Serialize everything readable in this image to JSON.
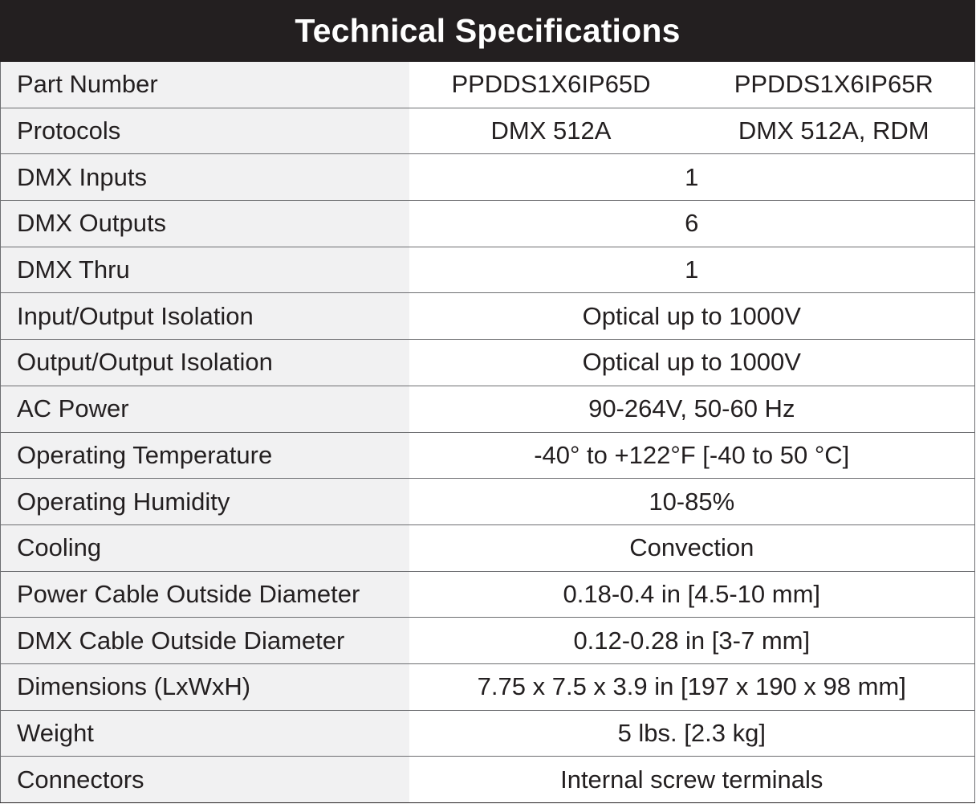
{
  "title": "Technical Specifications",
  "rows": [
    {
      "label": "Part Number",
      "values": [
        "PPDDS1X6IP65D",
        "PPDDS1X6IP65R"
      ]
    },
    {
      "label": "Protocols",
      "values": [
        "DMX 512A",
        "DMX 512A, RDM"
      ]
    },
    {
      "label": "DMX Inputs",
      "value": "1"
    },
    {
      "label": "DMX Outputs",
      "value": "6"
    },
    {
      "label": "DMX Thru",
      "value": "1"
    },
    {
      "label": "Input/Output Isolation",
      "value": "Optical up to 1000V"
    },
    {
      "label": "Output/Output Isolation",
      "value": "Optical up to 1000V"
    },
    {
      "label": "AC Power",
      "value": "90-264V, 50-60 Hz"
    },
    {
      "label": "Operating Temperature",
      "value": "-40° to +122°F [-40 to 50 °C]"
    },
    {
      "label": "Operating Humidity",
      "value": "10-85%"
    },
    {
      "label": "Cooling",
      "value": "Convection"
    },
    {
      "label": "Power Cable Outside Diameter",
      "value": "0.18-0.4 in [4.5-10 mm]"
    },
    {
      "label": "DMX Cable Outside Diameter",
      "value": "0.12-0.28 in [3-7 mm]"
    },
    {
      "label": "Dimensions (LxWxH)",
      "value": "7.75 x 7.5 x 3.9 in [197 x 190 x 98 mm]"
    },
    {
      "label": "Weight",
      "value": "5 lbs. [2.3 kg]"
    },
    {
      "label": "Connectors",
      "value": "Internal screw terminals"
    }
  ],
  "colors": {
    "header_background": "#231f20",
    "header_text": "#ffffff",
    "label_background": "#f1f1f2",
    "value_background": "#ffffff",
    "text": "#231f20",
    "row_divider": "#6d6e71"
  }
}
